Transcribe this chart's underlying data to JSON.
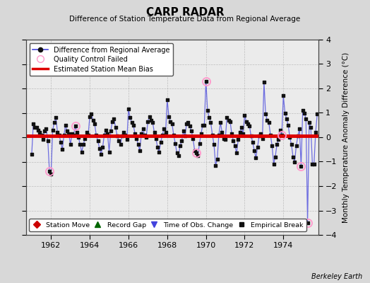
{
  "title": "CARP RADAR",
  "subtitle": "Difference of Station Temperature Data from Regional Average",
  "ylabel_right": "Monthly Temperature Anomaly Difference (°C)",
  "credit": "Berkeley Earth",
  "xlim": [
    1960.7,
    1975.8
  ],
  "ylim": [
    -4,
    4
  ],
  "yticks": [
    -4,
    -3,
    -2,
    -1,
    0,
    1,
    2,
    3,
    4
  ],
  "xticks": [
    1962,
    1964,
    1966,
    1968,
    1970,
    1972,
    1974
  ],
  "mean_bias": 0.05,
  "bg_color": "#d8d8d8",
  "plot_bg_color": "#ebebeb",
  "line_color": "#4444dd",
  "bias_color": "#dd0000",
  "marker_color": "#111111",
  "qc_color": "#ff99cc",
  "data": [
    [
      1961.0,
      -0.7
    ],
    [
      1961.083,
      0.55
    ],
    [
      1961.167,
      0.4
    ],
    [
      1961.25,
      0.4
    ],
    [
      1961.333,
      0.3
    ],
    [
      1961.417,
      0.2
    ],
    [
      1961.5,
      0.1
    ],
    [
      1961.583,
      -0.1
    ],
    [
      1961.667,
      0.25
    ],
    [
      1961.75,
      0.35
    ],
    [
      1961.833,
      -0.15
    ],
    [
      1961.917,
      -1.4
    ],
    [
      1962.0,
      -1.5
    ],
    [
      1962.083,
      0.3
    ],
    [
      1962.167,
      0.6
    ],
    [
      1962.25,
      0.8
    ],
    [
      1962.333,
      0.2
    ],
    [
      1962.417,
      0.1
    ],
    [
      1962.5,
      -0.2
    ],
    [
      1962.583,
      -0.5
    ],
    [
      1962.667,
      0.1
    ],
    [
      1962.75,
      0.5
    ],
    [
      1962.833,
      0.25
    ],
    [
      1962.917,
      0.15
    ],
    [
      1963.0,
      -0.3
    ],
    [
      1963.083,
      0.15
    ],
    [
      1963.167,
      0.1
    ],
    [
      1963.25,
      0.45
    ],
    [
      1963.333,
      0.2
    ],
    [
      1963.417,
      0.0
    ],
    [
      1963.5,
      -0.3
    ],
    [
      1963.583,
      -0.6
    ],
    [
      1963.667,
      -0.3
    ],
    [
      1963.75,
      -0.05
    ],
    [
      1963.833,
      0.2
    ],
    [
      1963.917,
      0.1
    ],
    [
      1964.0,
      0.85
    ],
    [
      1964.083,
      0.95
    ],
    [
      1964.167,
      0.7
    ],
    [
      1964.25,
      0.55
    ],
    [
      1964.333,
      0.1
    ],
    [
      1964.417,
      -0.15
    ],
    [
      1964.5,
      -0.45
    ],
    [
      1964.583,
      -0.7
    ],
    [
      1964.667,
      -0.4
    ],
    [
      1964.75,
      0.1
    ],
    [
      1964.833,
      0.3
    ],
    [
      1964.917,
      0.15
    ],
    [
      1965.0,
      -0.6
    ],
    [
      1965.083,
      0.25
    ],
    [
      1965.167,
      0.65
    ],
    [
      1965.25,
      0.75
    ],
    [
      1965.333,
      0.4
    ],
    [
      1965.417,
      0.05
    ],
    [
      1965.5,
      -0.15
    ],
    [
      1965.583,
      -0.3
    ],
    [
      1965.667,
      0.05
    ],
    [
      1965.75,
      0.2
    ],
    [
      1965.833,
      0.1
    ],
    [
      1965.917,
      -0.1
    ],
    [
      1966.0,
      1.15
    ],
    [
      1966.083,
      0.8
    ],
    [
      1966.167,
      0.6
    ],
    [
      1966.25,
      0.5
    ],
    [
      1966.333,
      0.15
    ],
    [
      1966.417,
      -0.05
    ],
    [
      1966.5,
      -0.3
    ],
    [
      1966.583,
      -0.55
    ],
    [
      1966.667,
      0.15
    ],
    [
      1966.75,
      0.35
    ],
    [
      1966.833,
      0.1
    ],
    [
      1966.917,
      0.0
    ],
    [
      1967.0,
      0.65
    ],
    [
      1967.083,
      0.85
    ],
    [
      1967.167,
      0.7
    ],
    [
      1967.25,
      0.6
    ],
    [
      1967.333,
      0.2
    ],
    [
      1967.417,
      -0.05
    ],
    [
      1967.5,
      -0.4
    ],
    [
      1967.583,
      -0.6
    ],
    [
      1967.667,
      -0.2
    ],
    [
      1967.75,
      0.1
    ],
    [
      1967.833,
      0.35
    ],
    [
      1967.917,
      0.2
    ],
    [
      1968.0,
      1.55
    ],
    [
      1968.083,
      0.85
    ],
    [
      1968.167,
      0.65
    ],
    [
      1968.25,
      0.55
    ],
    [
      1968.333,
      0.1
    ],
    [
      1968.417,
      -0.25
    ],
    [
      1968.5,
      -0.65
    ],
    [
      1968.583,
      -0.75
    ],
    [
      1968.667,
      -0.35
    ],
    [
      1968.75,
      -0.15
    ],
    [
      1968.833,
      0.25
    ],
    [
      1968.917,
      0.05
    ],
    [
      1969.0,
      0.55
    ],
    [
      1969.083,
      0.6
    ],
    [
      1969.167,
      0.45
    ],
    [
      1969.25,
      0.25
    ],
    [
      1969.333,
      -0.05
    ],
    [
      1969.417,
      -0.55
    ],
    [
      1969.5,
      -0.65
    ],
    [
      1969.583,
      -0.75
    ],
    [
      1969.667,
      -0.25
    ],
    [
      1969.75,
      0.15
    ],
    [
      1969.833,
      0.5
    ],
    [
      1969.917,
      0.5
    ],
    [
      1970.0,
      2.3
    ],
    [
      1970.083,
      1.1
    ],
    [
      1970.167,
      0.8
    ],
    [
      1970.25,
      0.6
    ],
    [
      1970.333,
      0.1
    ],
    [
      1970.417,
      -0.3
    ],
    [
      1970.5,
      -1.15
    ],
    [
      1970.583,
      -0.9
    ],
    [
      1970.667,
      0.1
    ],
    [
      1970.75,
      0.6
    ],
    [
      1970.833,
      0.2
    ],
    [
      1970.917,
      -0.05
    ],
    [
      1971.0,
      -0.1
    ],
    [
      1971.083,
      0.8
    ],
    [
      1971.167,
      0.7
    ],
    [
      1971.25,
      0.65
    ],
    [
      1971.333,
      0.15
    ],
    [
      1971.417,
      -0.15
    ],
    [
      1971.5,
      -0.35
    ],
    [
      1971.583,
      -0.65
    ],
    [
      1971.667,
      -0.1
    ],
    [
      1971.75,
      0.2
    ],
    [
      1971.833,
      0.4
    ],
    [
      1971.917,
      0.15
    ],
    [
      1972.0,
      0.9
    ],
    [
      1972.083,
      0.65
    ],
    [
      1972.167,
      0.55
    ],
    [
      1972.25,
      0.45
    ],
    [
      1972.333,
      0.05
    ],
    [
      1972.417,
      -0.2
    ],
    [
      1972.5,
      -0.55
    ],
    [
      1972.583,
      -0.85
    ],
    [
      1972.667,
      -0.4
    ],
    [
      1972.75,
      0.05
    ],
    [
      1972.833,
      0.15
    ],
    [
      1972.917,
      -0.05
    ],
    [
      1973.0,
      2.25
    ],
    [
      1973.083,
      0.95
    ],
    [
      1973.167,
      0.7
    ],
    [
      1973.25,
      0.6
    ],
    [
      1973.333,
      0.1
    ],
    [
      1973.417,
      -0.35
    ],
    [
      1973.5,
      -1.1
    ],
    [
      1973.583,
      -0.8
    ],
    [
      1973.667,
      -0.3
    ],
    [
      1973.75,
      -0.1
    ],
    [
      1973.833,
      0.3
    ],
    [
      1973.917,
      0.1
    ],
    [
      1974.0,
      1.7
    ],
    [
      1974.083,
      1.0
    ],
    [
      1974.167,
      0.75
    ],
    [
      1974.25,
      0.5
    ],
    [
      1974.333,
      0.0
    ],
    [
      1974.417,
      -0.3
    ],
    [
      1974.5,
      -0.8
    ],
    [
      1974.583,
      -1.0
    ],
    [
      1974.667,
      -0.35
    ],
    [
      1974.75,
      0.05
    ],
    [
      1974.833,
      0.35
    ],
    [
      1974.917,
      -1.2
    ],
    [
      1975.0,
      1.1
    ],
    [
      1975.083,
      1.0
    ],
    [
      1975.167,
      0.75
    ],
    [
      1975.25,
      -3.5
    ],
    [
      1975.333,
      0.6
    ],
    [
      1975.417,
      0.4
    ],
    [
      1975.5,
      -1.1
    ],
    [
      1975.583,
      -1.1
    ],
    [
      1975.667,
      0.2
    ],
    [
      1975.75,
      0.95
    ]
  ],
  "qc_failed_years": [
    1961.917,
    1963.25,
    1969.5,
    1970.0,
    1973.917,
    1974.917,
    1975.25
  ]
}
